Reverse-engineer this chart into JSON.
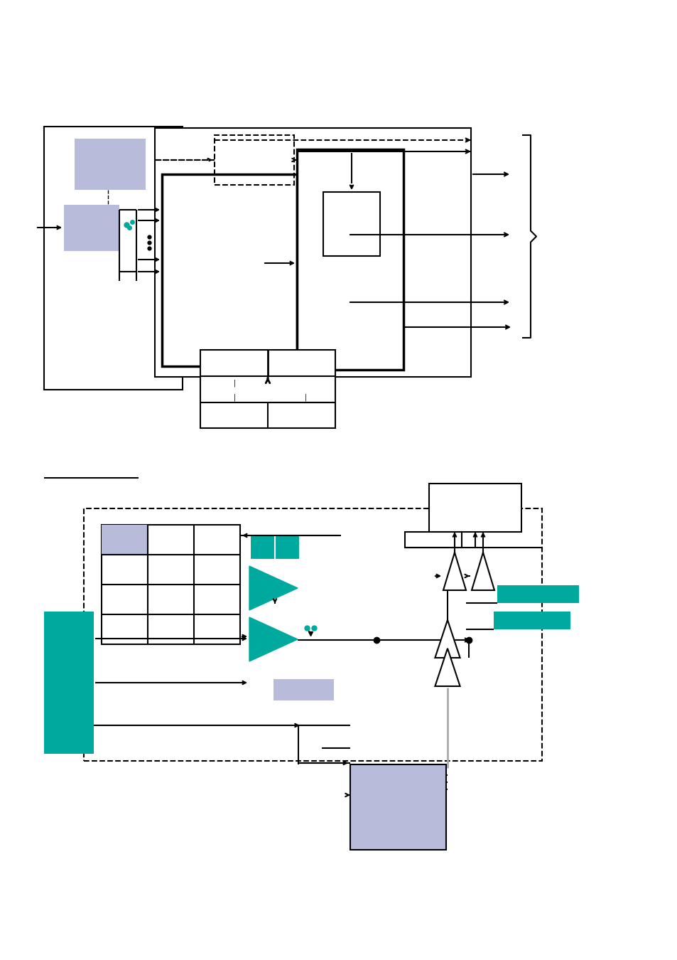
{
  "bg_color": "#ffffff",
  "teal": "#00a99d",
  "lavender": "#b8bcda",
  "black": "#000000",
  "gray_line": "#999999"
}
